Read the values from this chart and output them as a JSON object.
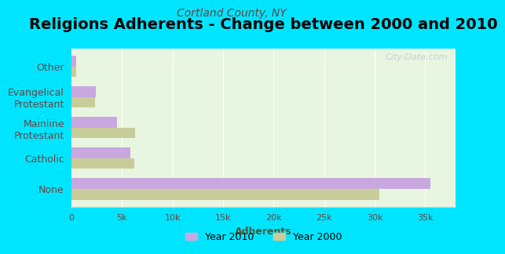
{
  "title": "Religions Adherents - Change between 2000 and 2010",
  "subtitle": "Cortland County, NY",
  "xlabel": "Adherents",
  "categories": [
    "None",
    "Catholic",
    "Mainline\nProtestant",
    "Evangelical\nProtestant",
    "Other"
  ],
  "values_2010": [
    35500,
    5800,
    4500,
    2400,
    500
  ],
  "values_2000": [
    30500,
    6200,
    6300,
    2300,
    450
  ],
  "color_2010": "#c9a8e0",
  "color_2000": "#c8cc99",
  "background_outer": "#00e5ff",
  "background_plot": "#e8f5e0",
  "xlim": [
    0,
    38000
  ],
  "xticks": [
    0,
    5000,
    10000,
    15000,
    20000,
    25000,
    30000,
    35000
  ],
  "xtick_labels": [
    "0",
    "5k",
    "10k",
    "15k",
    "20k",
    "25k",
    "30k",
    "35k"
  ],
  "bar_height": 0.35,
  "title_fontsize": 14,
  "subtitle_fontsize": 10,
  "label_fontsize": 9,
  "legend_label_2010": "Year 2010",
  "legend_label_2000": "Year 2000",
  "watermark": "City-Data.com"
}
